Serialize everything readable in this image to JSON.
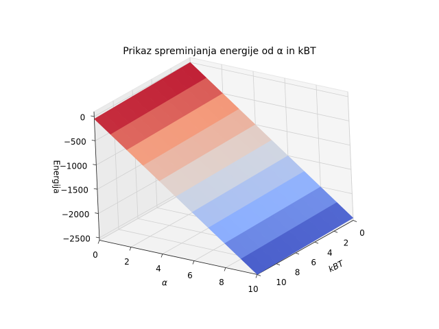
{
  "chart_data": {
    "type": "surface",
    "title": "Prikaz spreminjanja energije od α in kBT",
    "xlabel": "α",
    "ylabel": "kBT",
    "zlabel": "Energija",
    "colormap": "coolwarm",
    "x": [
      0,
      1,
      2,
      3,
      4,
      5,
      6,
      7,
      8,
      9,
      10
    ],
    "y": [
      0,
      1,
      2,
      3,
      4,
      5,
      6,
      7,
      8,
      9,
      10
    ],
    "z": [
      [
        0,
        -5,
        -10,
        -15,
        -20,
        -25,
        -30,
        -35,
        -40,
        -45,
        -50
      ],
      [
        -250,
        -255,
        -260,
        -265,
        -270,
        -275,
        -280,
        -285,
        -290,
        -295,
        -300
      ],
      [
        -500,
        -505,
        -510,
        -515,
        -520,
        -525,
        -530,
        -535,
        -540,
        -545,
        -550
      ],
      [
        -750,
        -755,
        -760,
        -765,
        -770,
        -775,
        -780,
        -785,
        -790,
        -795,
        -800
      ],
      [
        -1000,
        -1005,
        -1010,
        -1015,
        -1020,
        -1025,
        -1030,
        -1035,
        -1040,
        -1045,
        -1050
      ],
      [
        -1250,
        -1255,
        -1260,
        -1265,
        -1270,
        -1275,
        -1280,
        -1285,
        -1290,
        -1295,
        -1300
      ],
      [
        -1500,
        -1505,
        -1510,
        -1515,
        -1520,
        -1525,
        -1530,
        -1535,
        -1540,
        -1545,
        -1550
      ],
      [
        -1750,
        -1755,
        -1760,
        -1765,
        -1770,
        -1775,
        -1780,
        -1785,
        -1790,
        -1795,
        -1800
      ],
      [
        -2000,
        -2005,
        -2010,
        -2015,
        -2020,
        -2025,
        -2030,
        -2035,
        -2040,
        -2045,
        -2050
      ],
      [
        -2250,
        -2255,
        -2260,
        -2265,
        -2270,
        -2275,
        -2280,
        -2285,
        -2290,
        -2295,
        -2300
      ],
      [
        -2500,
        -2505,
        -2510,
        -2515,
        -2520,
        -2525,
        -2530,
        -2535,
        -2540,
        -2545,
        -2550
      ]
    ],
    "xlim": [
      0,
      10
    ],
    "ylim": [
      0,
      10
    ],
    "zlim": [
      -2550,
      100
    ],
    "xticks": [
      0,
      2,
      4,
      6,
      8,
      10
    ],
    "yticks": [
      0,
      2,
      4,
      6,
      8,
      10
    ],
    "zticks": [
      0,
      {
        "value": -500,
        "label": "−500"
      },
      {
        "value": -1000,
        "label": "−1000"
      },
      {
        "value": -1500,
        "label": "−1500"
      },
      {
        "value": -2000,
        "label": "−2000"
      },
      {
        "value": -2500,
        "label": "−2500"
      }
    ],
    "grid": true
  }
}
